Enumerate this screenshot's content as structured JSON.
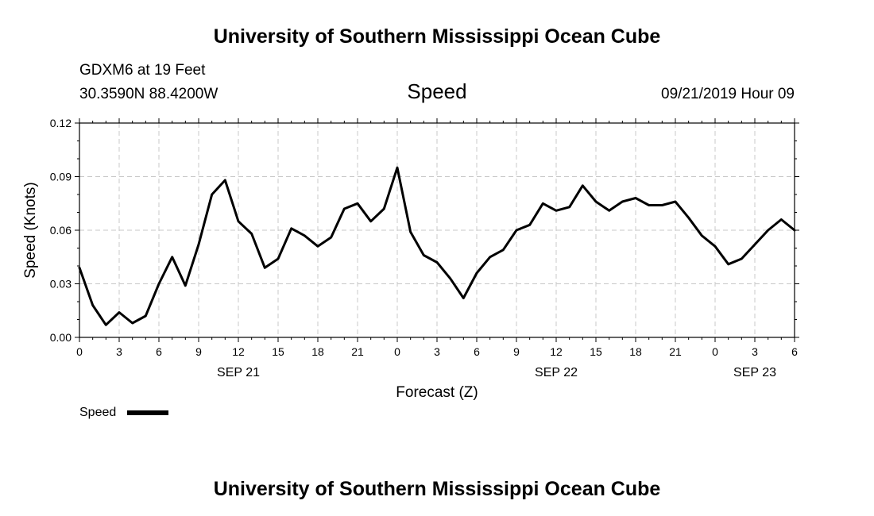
{
  "header": {
    "title": "University of Southern Mississippi Ocean Cube",
    "station": "GDXM6 at 19 Feet",
    "coords": "30.3590N 88.4200W",
    "date": "09/21/2019 Hour 09"
  },
  "footer": {
    "title": "University of Southern Mississippi Ocean Cube"
  },
  "legend": {
    "label": "Speed",
    "color": "#000000"
  },
  "chart_data": {
    "type": "line",
    "title": "Speed",
    "xlabel": "Forecast (Z)",
    "ylabel": "Speed (Knots)",
    "ylim": [
      0,
      0.12
    ],
    "yticks": [
      "0.00",
      "0.03",
      "0.06",
      "0.09",
      "0.12"
    ],
    "xlim": [
      "2019-09-21 00Z",
      "2019-09-23 06Z"
    ],
    "xticks": [
      "0",
      "3",
      "6",
      "9",
      "12",
      "15",
      "18",
      "21",
      "0",
      "3",
      "6",
      "9",
      "12",
      "15",
      "18",
      "21",
      "0",
      "3",
      "6"
    ],
    "date_labels": [
      {
        "label": "SEP 21",
        "at": "2019-09-21 12Z"
      },
      {
        "label": "SEP 22",
        "at": "2019-09-22 12Z"
      },
      {
        "label": "SEP 23",
        "at": "2019-09-23 03Z"
      }
    ],
    "grid": true,
    "legend_position": "bottom-left",
    "series": [
      {
        "name": "Speed",
        "color": "#000000",
        "x": [
          "2019-09-21 00Z",
          "2019-09-21 01Z",
          "2019-09-21 02Z",
          "2019-09-21 03Z",
          "2019-09-21 04Z",
          "2019-09-21 05Z",
          "2019-09-21 06Z",
          "2019-09-21 07Z",
          "2019-09-21 08Z",
          "2019-09-21 09Z",
          "2019-09-21 10Z",
          "2019-09-21 11Z",
          "2019-09-21 12Z",
          "2019-09-21 13Z",
          "2019-09-21 14Z",
          "2019-09-21 15Z",
          "2019-09-21 16Z",
          "2019-09-21 17Z",
          "2019-09-21 18Z",
          "2019-09-21 19Z",
          "2019-09-21 20Z",
          "2019-09-21 21Z",
          "2019-09-21 22Z",
          "2019-09-21 23Z",
          "2019-09-22 00Z",
          "2019-09-22 01Z",
          "2019-09-22 02Z",
          "2019-09-22 03Z",
          "2019-09-22 04Z",
          "2019-09-22 05Z",
          "2019-09-22 06Z",
          "2019-09-22 07Z",
          "2019-09-22 08Z",
          "2019-09-22 09Z",
          "2019-09-22 10Z",
          "2019-09-22 11Z",
          "2019-09-22 12Z",
          "2019-09-22 13Z",
          "2019-09-22 14Z",
          "2019-09-22 15Z",
          "2019-09-22 16Z",
          "2019-09-22 17Z",
          "2019-09-22 18Z",
          "2019-09-22 19Z",
          "2019-09-22 20Z",
          "2019-09-22 21Z",
          "2019-09-22 22Z",
          "2019-09-22 23Z",
          "2019-09-23 00Z",
          "2019-09-23 01Z",
          "2019-09-23 02Z",
          "2019-09-23 03Z",
          "2019-09-23 04Z",
          "2019-09-23 05Z",
          "2019-09-23 06Z"
        ],
        "values": [
          0.039,
          0.018,
          0.007,
          0.014,
          0.008,
          0.012,
          0.03,
          0.045,
          0.029,
          0.052,
          0.08,
          0.088,
          0.065,
          0.058,
          0.039,
          0.044,
          0.061,
          0.057,
          0.051,
          0.056,
          0.072,
          0.075,
          0.065,
          0.072,
          0.095,
          0.059,
          0.046,
          0.042,
          0.033,
          0.022,
          0.036,
          0.045,
          0.049,
          0.06,
          0.063,
          0.075,
          0.071,
          0.073,
          0.085,
          0.076,
          0.071,
          0.076,
          0.078,
          0.074,
          0.074,
          0.076,
          0.067,
          0.057,
          0.051,
          0.041,
          0.044,
          0.052,
          0.06,
          0.066,
          0.06
        ]
      }
    ]
  }
}
